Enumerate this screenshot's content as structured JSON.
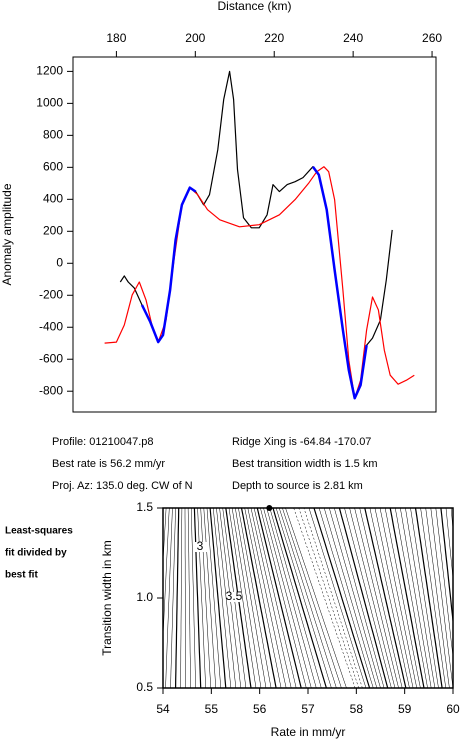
{
  "chart_data": [
    {
      "type": "line",
      "xlabel": "Distance (km)",
      "ylabel": "Anomaly amplitude",
      "xlim": [
        169,
        261
      ],
      "ylim": [
        -930,
        1290
      ],
      "xticks": [
        180,
        200,
        220,
        240,
        260
      ],
      "yticks": [
        -800,
        -600,
        -400,
        -200,
        0,
        200,
        400,
        600,
        800,
        1000,
        1200
      ],
      "series": [
        {
          "color": "#000000",
          "x": [
            181,
            182,
            183,
            184.5,
            186.5,
            188.6,
            190.6,
            191.8,
            193.6,
            195,
            196.6,
            198.6,
            200.1,
            202.1,
            203.6,
            205.7,
            207.2,
            208.7,
            209.7,
            210.7,
            212.2,
            214.2,
            216.2,
            218.2,
            219.7,
            221.3,
            223.3,
            225.3,
            227.3,
            229.8,
            231.3,
            233.3,
            235.3,
            237.4,
            238.9,
            240.4,
            241.9,
            243.4,
            244.9,
            246.9,
            248.4,
            249.9
          ],
          "values": [
            -117,
            -79,
            -117,
            -154,
            -261,
            -367,
            -493,
            -449,
            -167,
            147,
            366,
            473,
            448,
            366,
            429,
            711,
            1024,
            1200,
            1024,
            586,
            285,
            222,
            222,
            303,
            492,
            448,
            492,
            510,
            536,
            604,
            554,
            335,
            -41,
            -418,
            -668,
            -844,
            -762,
            -512,
            -468,
            -355,
            -104,
            209
          ]
        },
        {
          "color": "#ff0000",
          "x": [
            177,
            180,
            182,
            184,
            185.8,
            187.5,
            189,
            190.6,
            192.6,
            194.6,
            196.6,
            198.6,
            200.6,
            203.1,
            206.2,
            211.2,
            216.2,
            221.3,
            225.3,
            228.8,
            230.8,
            232.6,
            233.8,
            235.3,
            237.4,
            238.9,
            240.4,
            241.9,
            243.4,
            244.9,
            246.4,
            247.9,
            249.4,
            251.4,
            253.5,
            255.5
          ],
          "values": [
            -499,
            -493,
            -386,
            -198,
            -117,
            -229,
            -386,
            -493,
            -355,
            21,
            366,
            473,
            429,
            335,
            272,
            228,
            241,
            303,
            398,
            504,
            573,
            604,
            573,
            398,
            -167,
            -606,
            -844,
            -731,
            -418,
            -211,
            -292,
            -543,
            -700,
            -756,
            -731,
            -700
          ]
        },
        {
          "color": "#0000ff",
          "x": [
            186.5,
            188.6,
            190.6,
            191.8,
            193.6,
            195,
            196.6,
            198.6,
            200.1,
            null,
            229.8,
            231.3,
            233.3,
            235.3,
            237.4,
            238.9,
            240.4,
            241.9,
            243.4
          ],
          "values": [
            -261,
            -367,
            -493,
            -449,
            -167,
            147,
            366,
            473,
            448,
            null,
            604,
            554,
            335,
            -41,
            -418,
            -668,
            -844,
            -762,
            -512
          ]
        }
      ]
    },
    {
      "type": "contour",
      "xlabel": "Rate in mm/yr",
      "ylabel": "Transition width in km",
      "xlim": [
        54,
        60
      ],
      "ylim": [
        0.5,
        1.5
      ],
      "xticks": [
        54,
        55,
        56,
        57,
        58,
        59,
        60
      ],
      "yticks": [
        {
          "value": 0.5,
          "label": "0.5"
        },
        {
          "value": 1,
          "label": "1.0"
        },
        {
          "value": 1.5,
          "label": "1.5"
        }
      ],
      "best_fit": {
        "x": 56.2,
        "y": 1.5
      },
      "contour_labels": [
        "3",
        "3.5"
      ]
    }
  ],
  "info": {
    "profile": "Profile: 01210047.p8",
    "ridge": "Ridge Xing is -64.84 -170.07",
    "rate": "Best rate is 56.2 mm/yr",
    "width": "Best transition width is 1.5 km",
    "azimuth": "Proj. Az: 135.0 deg. CW of N",
    "depth": "Depth to source is   2.81 km"
  },
  "side_note": [
    "Least-squares",
    "fit divided by",
    "best fit"
  ]
}
